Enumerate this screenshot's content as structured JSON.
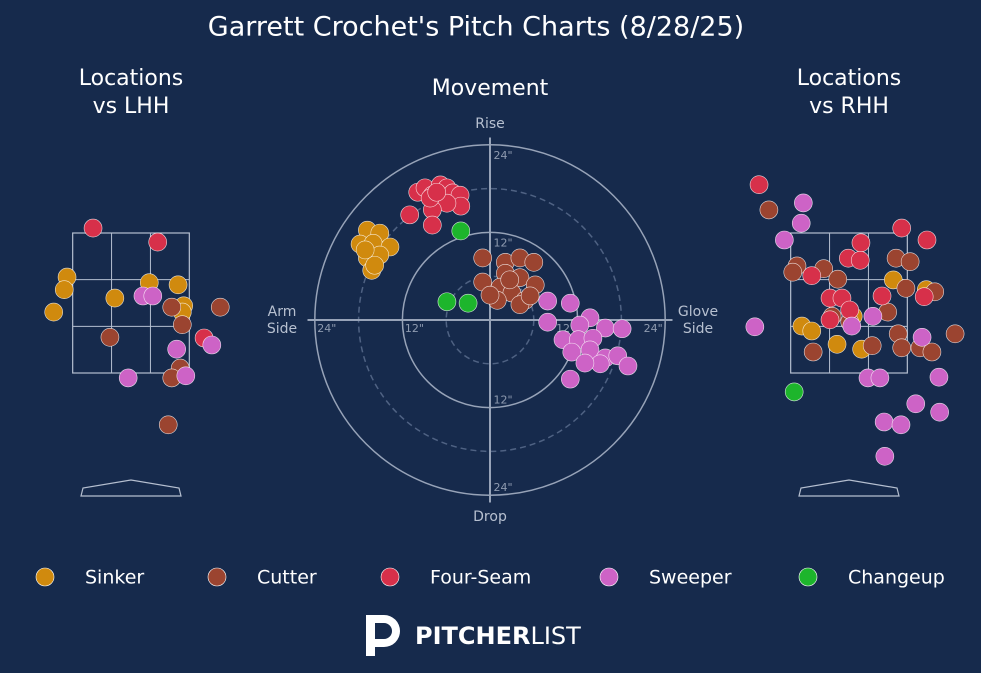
{
  "title": "Garrett Crochet's Pitch Charts (8/28/25)",
  "legend": [
    {
      "name": "Sinker",
      "color": "#d08a0e"
    },
    {
      "name": "Cutter",
      "color": "#9b4430"
    },
    {
      "name": "Four-Seam",
      "color": "#d7304a"
    },
    {
      "name": "Sweeper",
      "color": "#cd63c6"
    },
    {
      "name": "Changeup",
      "color": "#1db52c"
    }
  ],
  "logo": {
    "bold": "PITCHER",
    "light": "LIST"
  },
  "chart_data": [
    {
      "type": "scatter",
      "title": [
        "Locations",
        "vs LHH"
      ],
      "xlim": [
        -1.85,
        1.85
      ],
      "ylim": [
        0,
        5
      ],
      "strike_zone": {
        "x": [
          -0.83,
          0.83
        ],
        "y": [
          1.5,
          3.5
        ]
      },
      "series": [
        {
          "x": [
            -0.91,
            -0.95,
            -1.1,
            -0.23,
            0.26,
            0.67,
            0.75,
            0.73
          ],
          "y": [
            2.87,
            2.69,
            2.37,
            2.57,
            2.79,
            2.76,
            2.46,
            2.37
          ]
        },
        {
          "x": [
            1.27,
            0.58,
            0.73,
            -0.3,
            0.7,
            0.58,
            0.53
          ],
          "y": [
            2.44,
            2.44,
            2.19,
            2.01,
            1.57,
            1.43,
            0.76
          ]
        },
        {
          "x": [
            -0.54,
            0.38,
            1.04
          ],
          "y": [
            3.57,
            3.37,
            2.0
          ]
        },
        {
          "x": [
            0.17,
            0.31,
            1.15,
            0.65,
            0.78,
            -0.04
          ],
          "y": [
            2.6,
            2.6,
            1.9,
            1.84,
            1.46,
            1.43
          ]
        },
        {
          "x": [],
          "y": []
        }
      ]
    },
    {
      "type": "movement",
      "title": "Movement",
      "labels": {
        "top": "Rise",
        "bottom": "Drop",
        "left": [
          "Arm",
          "Side"
        ],
        "right": [
          "Glove",
          "Side"
        ]
      },
      "rlim": [
        0,
        25
      ],
      "rticks": [
        {
          "value": 12,
          "label": "12\""
        },
        {
          "value": 24,
          "label": "24\""
        }
      ],
      "minor_rings": [
        6,
        18
      ],
      "series": [
        {
          "x": [
            -16.8,
            -15.1,
            -17.8,
            -16.0,
            -13.7,
            -16.8,
            -15.1,
            -16.2,
            -15.8,
            -17.1
          ],
          "y": [
            12.3,
            11.9,
            10.4,
            10.5,
            10.0,
            8.5,
            8.9,
            6.8,
            7.5,
            9.6
          ]
        },
        {
          "x": [
            -1.0,
            2.1,
            4.1,
            6.0,
            2.1,
            4.1,
            6.2,
            -1.0,
            1.4,
            3.0,
            4.8,
            1.0,
            0,
            4.1,
            5.5,
            2.7
          ],
          "y": [
            8.5,
            7.9,
            8.5,
            7.9,
            6.4,
            5.8,
            4.8,
            5.2,
            4.5,
            3.7,
            2.7,
            2.7,
            3.4,
            2.1,
            3.3,
            5.5
          ]
        },
        {
          "x": [
            -9.9,
            -8.9,
            -7.9,
            -6.8,
            -5.9,
            -5.1,
            -4.1,
            -4.0,
            -5.9,
            -7.9,
            -11.0,
            -7.9,
            -8.2,
            -7.3
          ],
          "y": [
            17.5,
            18.1,
            17.1,
            18.5,
            18.1,
            17.4,
            17.1,
            15.6,
            16.0,
            15.1,
            14.4,
            13.0,
            16.7,
            17.5
          ]
        },
        {
          "x": [
            7.9,
            11.0,
            7.9,
            13.7,
            15.8,
            18.1,
            12.3,
            10.0,
            12.1,
            14.1,
            11.2,
            13.7,
            15.8,
            17.5,
            18.9,
            15.1,
            13.0,
            11.0
          ],
          "y": [
            2.6,
            2.3,
            -0.3,
            0.3,
            -1.1,
            -1.2,
            -0.7,
            -2.7,
            -2.7,
            -2.5,
            -4.4,
            -4.1,
            -5.2,
            -4.9,
            -6.3,
            -6.0,
            -5.9,
            -8.1
          ]
        },
        {
          "x": [
            -4.0,
            -5.9,
            -3.0
          ],
          "y": [
            12.2,
            2.5,
            2.3
          ]
        }
      ]
    },
    {
      "type": "scatter",
      "title": [
        "Locations",
        "vs RHH"
      ],
      "xlim": [
        -1.85,
        1.85
      ],
      "ylim": [
        0,
        5
      ],
      "strike_zone": {
        "x": [
          -0.83,
          0.83
        ],
        "y": [
          1.5,
          3.5
        ]
      },
      "series": [
        {
          "x": [
            0.63,
            1.1,
            -0.67,
            -0.53,
            -0.17,
            0.18,
            0.06
          ],
          "y": [
            2.83,
            2.69,
            2.17,
            2.1,
            1.91,
            1.84,
            2.31
          ]
        },
        {
          "x": [
            -1.14,
            -0.74,
            -0.8,
            -0.36,
            -0.16,
            0.67,
            0.87,
            0.81,
            1.22,
            0.55,
            -0.24,
            0.01,
            0.7,
            1.01,
            1.18,
            0.75,
            0.33,
            -0.51,
            1.51
          ],
          "y": [
            3.83,
            3.03,
            2.94,
            2.99,
            2.84,
            3.14,
            3.09,
            2.71,
            2.66,
            2.37,
            2.31,
            2.23,
            2.06,
            1.86,
            1.8,
            1.86,
            1.89,
            1.8,
            2.06
          ]
        },
        {
          "x": [
            -1.28,
            0.75,
            1.11,
            0.17,
            -0.01,
            0.16,
            -0.53,
            -0.27,
            -0.1,
            0.47,
            1.07,
            -0.27,
            0.01
          ],
          "y": [
            4.19,
            3.57,
            3.4,
            3.36,
            3.14,
            3.11,
            2.89,
            2.57,
            2.57,
            2.6,
            2.59,
            2.26,
            2.4
          ]
        },
        {
          "x": [
            -0.65,
            -0.68,
            -0.92,
            -1.34,
            0.34,
            1.04,
            0.27,
            0.44,
            1.28,
            0.95,
            1.29,
            0.5,
            0.74,
            0.51,
            0.04
          ],
          "y": [
            3.93,
            3.64,
            3.4,
            2.16,
            2.31,
            2.01,
            1.43,
            1.43,
            1.44,
            1.06,
            0.94,
            0.8,
            0.76,
            0.31,
            2.17
          ]
        },
        {
          "x": [
            -0.78
          ],
          "y": [
            1.23
          ]
        }
      ]
    }
  ]
}
